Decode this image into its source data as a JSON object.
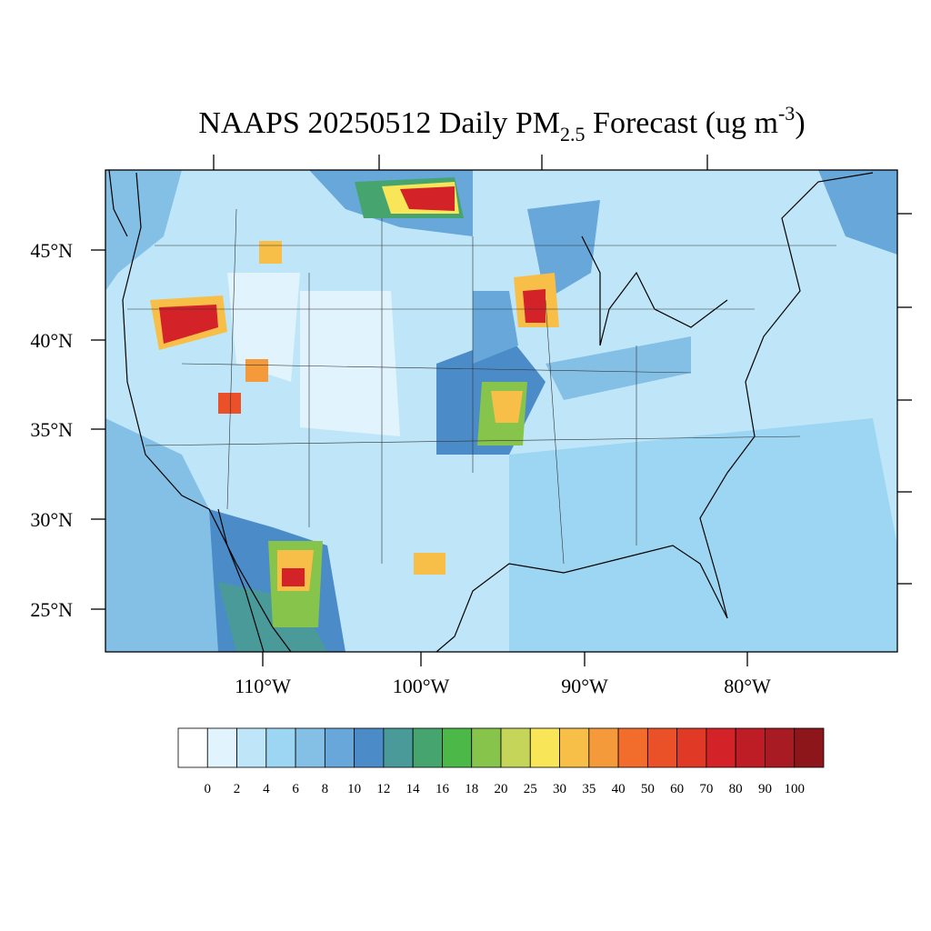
{
  "map": {
    "title": {
      "main": "NAAPS 20250512 Daily PM",
      "sub": "2.5",
      "rest": " Forecast (ug m",
      "sup": "-3",
      "end": ")"
    },
    "lat_labels": [
      "45°N",
      "40°N",
      "35°N",
      "30°N",
      "25°N"
    ],
    "lon_labels": [
      "110°W",
      "100°W",
      "90°W",
      "80°W"
    ],
    "colorbar": {
      "levels": [
        0,
        2,
        4,
        6,
        8,
        10,
        12,
        14,
        16,
        18,
        20,
        25,
        30,
        35,
        40,
        50,
        60,
        70,
        80,
        90,
        100
      ],
      "colors": [
        "#ffffff",
        "#e1f3fc",
        "#bfe6f8",
        "#9dd6f3",
        "#84c0e6",
        "#68a7da",
        "#4a8bc8",
        "#4b9a9a",
        "#46a56e",
        "#4cb848",
        "#86c44c",
        "#c4d55a",
        "#f8e558",
        "#f8bf48",
        "#f59a3a",
        "#f26c2c",
        "#ea5128",
        "#e03a26",
        "#d42229",
        "#be1d25",
        "#a81b22",
        "#8d161b"
      ]
    }
  }
}
